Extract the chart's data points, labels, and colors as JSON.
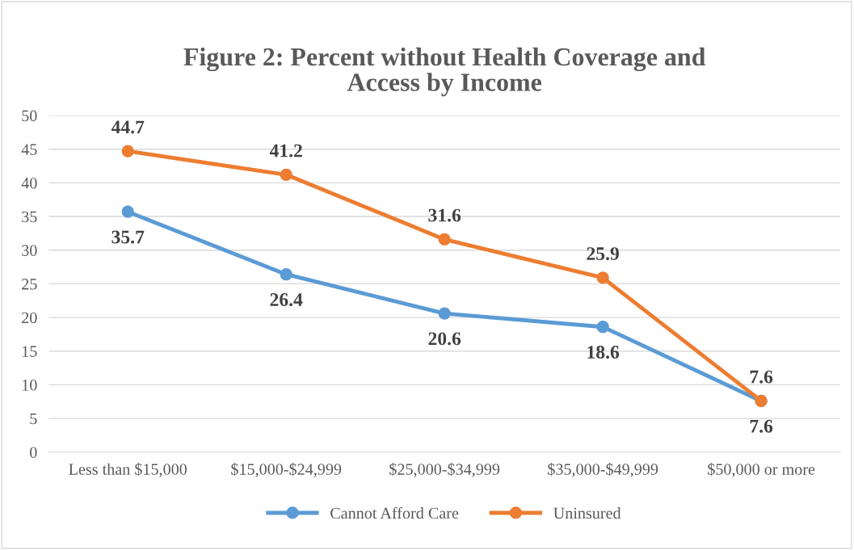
{
  "chart_data": {
    "type": "line",
    "title": "Figure 2: Percent without Health Coverage and\nAccess by Income",
    "categories": [
      "Less than $15,000",
      "$15,000-$24,999",
      "$25,000-$34,999",
      "$35,000-$49,999",
      "$50,000 or more"
    ],
    "series": [
      {
        "name": "Cannot Afford Care",
        "color": "#5b9bd5",
        "values": [
          35.7,
          26.4,
          20.6,
          18.6,
          7.6
        ]
      },
      {
        "name": "Uninsured",
        "color": "#ed7d31",
        "values": [
          44.7,
          41.2,
          31.6,
          25.9,
          7.6
        ]
      }
    ],
    "ylim": [
      0,
      50
    ],
    "yticks": [
      0,
      5,
      10,
      15,
      20,
      25,
      30,
      35,
      40,
      45,
      50
    ],
    "grid": "y",
    "legend": "bottom",
    "marker": "circle",
    "line_style": "solid",
    "data_labels": true
  }
}
